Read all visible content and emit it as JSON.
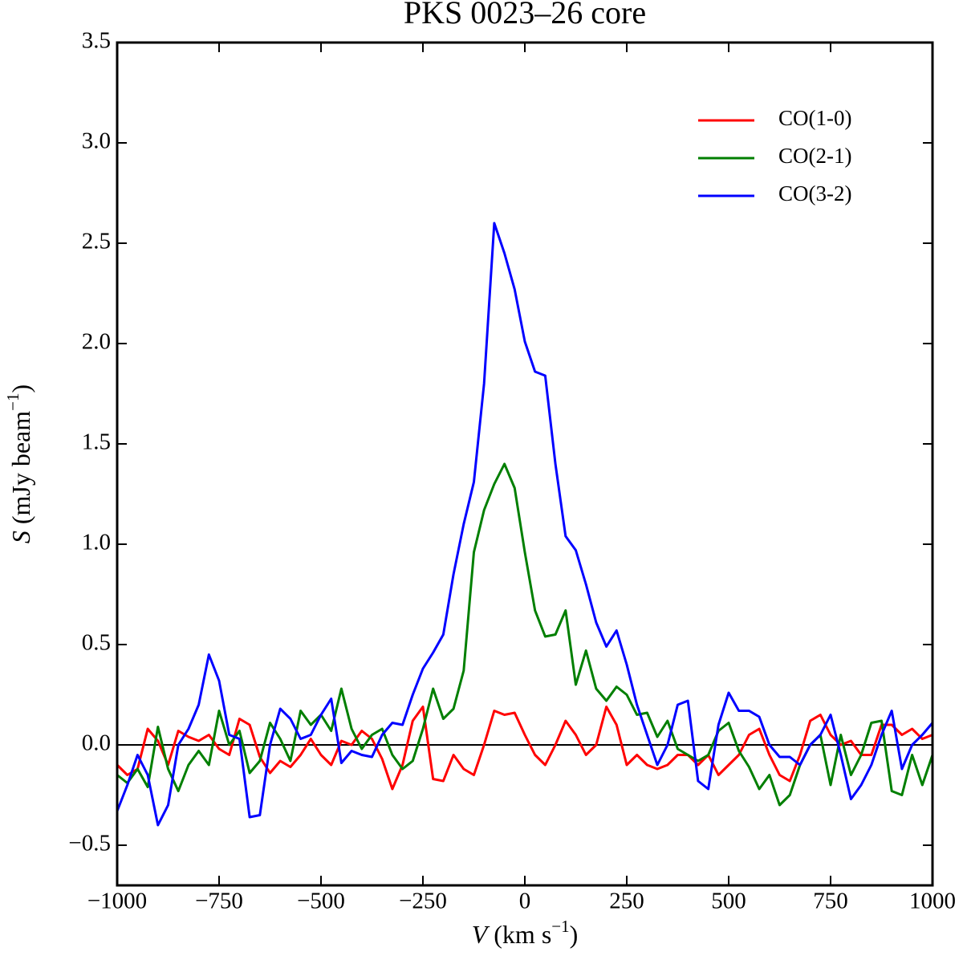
{
  "chart_data": {
    "type": "line",
    "title": "PKS 0023–26    core",
    "xlabel": [
      "V",
      " (km s",
      "−1",
      ")"
    ],
    "ylabel": [
      "S",
      " (mJy beam",
      "−1",
      ")"
    ],
    "x": [
      -1000,
      -975,
      -950,
      -925,
      -900,
      -875,
      -850,
      -825,
      -800,
      -775,
      -750,
      -725,
      -700,
      -675,
      -650,
      -625,
      -600,
      -575,
      -550,
      -525,
      -500,
      -475,
      -450,
      -425,
      -400,
      -375,
      -350,
      -325,
      -300,
      -275,
      -250,
      -225,
      -200,
      -175,
      -150,
      -125,
      -100,
      -75,
      -50,
      -25,
      0,
      25,
      50,
      75,
      100,
      125,
      150,
      175,
      200,
      225,
      250,
      275,
      300,
      325,
      350,
      375,
      400,
      425,
      450,
      475,
      500,
      525,
      550,
      575,
      600,
      625,
      650,
      675,
      700,
      725,
      750,
      775,
      800,
      825,
      850,
      875,
      900,
      925,
      950,
      975,
      1000
    ],
    "series": [
      {
        "name": "CO(1-0)",
        "color": "#ff0000",
        "values": [
          -0.1,
          -0.15,
          -0.12,
          0.08,
          0.02,
          -0.1,
          0.07,
          0.04,
          0.02,
          0.05,
          -0.02,
          -0.05,
          0.13,
          0.1,
          -0.06,
          -0.14,
          -0.08,
          -0.11,
          -0.05,
          0.03,
          -0.05,
          -0.1,
          0.02,
          0.0,
          0.07,
          0.03,
          -0.07,
          -0.22,
          -0.1,
          0.12,
          0.19,
          -0.17,
          -0.18,
          -0.05,
          -0.12,
          -0.15,
          0.0,
          0.17,
          0.15,
          0.16,
          0.05,
          -0.05,
          -0.1,
          0.0,
          0.12,
          0.05,
          -0.05,
          0.0,
          0.19,
          0.1,
          -0.1,
          -0.05,
          -0.1,
          -0.12,
          -0.1,
          -0.05,
          -0.05,
          -0.1,
          -0.05,
          -0.15,
          -0.1,
          -0.05,
          0.05,
          0.08,
          -0.05,
          -0.15,
          -0.18,
          -0.05,
          0.12,
          0.15,
          0.05,
          0.0,
          0.02,
          -0.05,
          -0.05,
          0.1,
          0.1,
          0.05,
          0.08,
          0.03,
          0.05
        ]
      },
      {
        "name": "CO(2-1)",
        "color": "#007f00",
        "values": [
          -0.15,
          -0.19,
          -0.12,
          -0.21,
          0.09,
          -0.12,
          -0.23,
          -0.1,
          -0.03,
          -0.1,
          0.17,
          0.0,
          0.07,
          -0.14,
          -0.08,
          0.11,
          0.03,
          -0.08,
          0.17,
          0.1,
          0.15,
          0.07,
          0.28,
          0.08,
          -0.02,
          0.05,
          0.08,
          -0.05,
          -0.12,
          -0.08,
          0.08,
          0.28,
          0.13,
          0.18,
          0.37,
          0.96,
          1.17,
          1.3,
          1.4,
          1.28,
          0.96,
          0.67,
          0.54,
          0.55,
          0.67,
          0.3,
          0.47,
          0.28,
          0.22,
          0.29,
          0.25,
          0.15,
          0.16,
          0.04,
          0.12,
          -0.02,
          -0.05,
          -0.08,
          -0.05,
          0.07,
          0.11,
          -0.03,
          -0.11,
          -0.22,
          -0.15,
          -0.3,
          -0.25,
          -0.1,
          0.0,
          0.05,
          -0.2,
          0.05,
          -0.15,
          -0.05,
          0.11,
          0.12,
          -0.23,
          -0.25,
          -0.05,
          -0.2,
          -0.05
        ]
      },
      {
        "name": "CO(3-2)",
        "color": "#0000ff",
        "values": [
          -0.33,
          -0.2,
          -0.05,
          -0.15,
          -0.4,
          -0.3,
          0.0,
          0.08,
          0.2,
          0.45,
          0.32,
          0.05,
          0.03,
          -0.36,
          -0.35,
          0.0,
          0.18,
          0.13,
          0.03,
          0.05,
          0.15,
          0.23,
          -0.09,
          -0.03,
          -0.05,
          -0.06,
          0.05,
          0.11,
          0.1,
          0.25,
          0.38,
          0.46,
          0.55,
          0.85,
          1.1,
          1.31,
          1.8,
          2.6,
          2.45,
          2.27,
          2.01,
          1.86,
          1.84,
          1.4,
          1.04,
          0.97,
          0.8,
          0.61,
          0.49,
          0.57,
          0.4,
          0.2,
          0.05,
          -0.1,
          0.0,
          0.2,
          0.22,
          -0.18,
          -0.22,
          0.1,
          0.26,
          0.17,
          0.17,
          0.14,
          0.0,
          -0.06,
          -0.06,
          -0.1,
          0.0,
          0.05,
          0.15,
          -0.05,
          -0.27,
          -0.2,
          -0.1,
          0.05,
          0.17,
          -0.12,
          0.0,
          0.05,
          0.11
        ]
      }
    ],
    "xlim": [
      -1000,
      1000
    ],
    "ylim": [
      -0.7,
      3.5
    ],
    "xticks": [
      {
        "value": -1000,
        "label": "−1000"
      },
      {
        "value": -750,
        "label": "−750"
      },
      {
        "value": -500,
        "label": "−500"
      },
      {
        "value": -250,
        "label": "−250"
      },
      0,
      250,
      500,
      750,
      1000
    ],
    "yticks": [
      {
        "value": -0.5,
        "label": "−0.5"
      },
      {
        "value": 0,
        "label": "0.0"
      },
      0.5,
      {
        "value": 1,
        "label": "1.0"
      },
      1.5,
      {
        "value": 2,
        "label": "2.0"
      },
      2.5,
      {
        "value": 3,
        "label": "3.0"
      },
      3.5
    ],
    "legend": "upper right"
  }
}
